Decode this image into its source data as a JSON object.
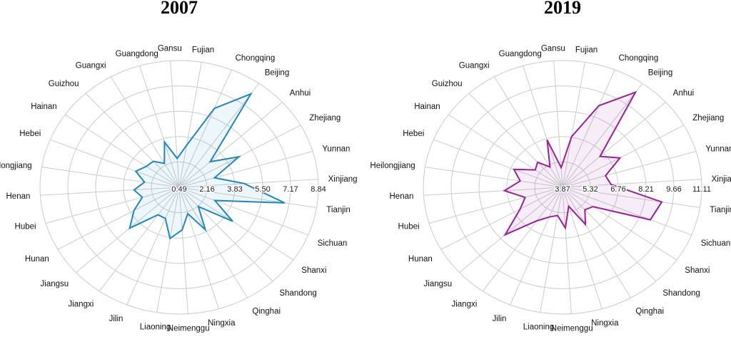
{
  "figure": {
    "background": "#ffffff",
    "description": "Two radar (polar) charts of Chinese provinces, years 2007 and 2019"
  },
  "chart_data": [
    {
      "type": "radar",
      "title": "2007",
      "line_color": "#1e87c0",
      "fill_color": "#1e87c0",
      "grid_color": "#c9cbce",
      "legend_position": "none",
      "grid": true,
      "radial_ticks": [
        "0.49",
        "2.16",
        "3.83",
        "5.50",
        "7.17",
        "8.84"
      ],
      "rlim": [
        0.49,
        8.84
      ],
      "categories": [
        "Anhui",
        "Beijing",
        "Chongqing",
        "Fujian",
        "Gansu",
        "Guangdong",
        "Guangxi",
        "Guizhou",
        "Hainan",
        "Hebei",
        "Heilongjiang",
        "Henan",
        "Hubei",
        "Hunan",
        "Jiangsu",
        "Jiangxi",
        "Jilin",
        "Liaoning",
        "Neimenggu",
        "Ningxia",
        "Qinghai",
        "Shandong",
        "Shanxi",
        "Sichuan",
        "Tianjin",
        "Xinjiang",
        "Yunnan",
        "Zhejiang"
      ],
      "values": [
        3.0,
        8.0,
        6.1,
        3.3,
        2.4,
        3.6,
        2.3,
        2.8,
        2.9,
        3.3,
        2.6,
        3.2,
        2.8,
        3.6,
        4.5,
        2.7,
        2.7,
        3.9,
        3.3,
        2.3,
        3.7,
        2.2,
        4.4,
        2.8,
        6.9,
        4.4,
        2.7,
        4.6
      ]
    },
    {
      "type": "radar",
      "title": "2019",
      "line_color": "#9a1f9c",
      "fill_color": "#9a1f9c",
      "grid_color": "#c9cbce",
      "legend_position": "none",
      "grid": true,
      "radial_ticks": [
        "3.87",
        "5.32",
        "6.76",
        "8.21",
        "9.66",
        "11.11"
      ],
      "rlim": [
        3.87,
        11.11
      ],
      "categories": [
        "Anhui",
        "Beijing",
        "Chongqing",
        "Fujian",
        "Gansu",
        "Guangdong",
        "Guangxi",
        "Guizhou",
        "Hainan",
        "Hebei",
        "Heilongjiang",
        "Henan",
        "Hubei",
        "Hunan",
        "Jiangsu",
        "Jiangxi",
        "Jilin",
        "Liaoning",
        "Neimenggu",
        "Ningxia",
        "Qinghai",
        "Shandong",
        "Shanxi",
        "Sichuan",
        "Tianjin",
        "Xinjiang",
        "Yunnan",
        "Zhejiang"
      ],
      "values": [
        6.5,
        10.5,
        8.9,
        6.8,
        5.0,
        6.7,
        5.2,
        5.8,
        5.6,
        6.6,
        6.1,
        6.9,
        5.9,
        6.4,
        7.9,
        6.2,
        5.7,
        5.5,
        6.2,
        5.0,
        6.3,
        5.6,
        5.8,
        8.8,
        9.1,
        6.4,
        6.2,
        7.3
      ]
    }
  ]
}
